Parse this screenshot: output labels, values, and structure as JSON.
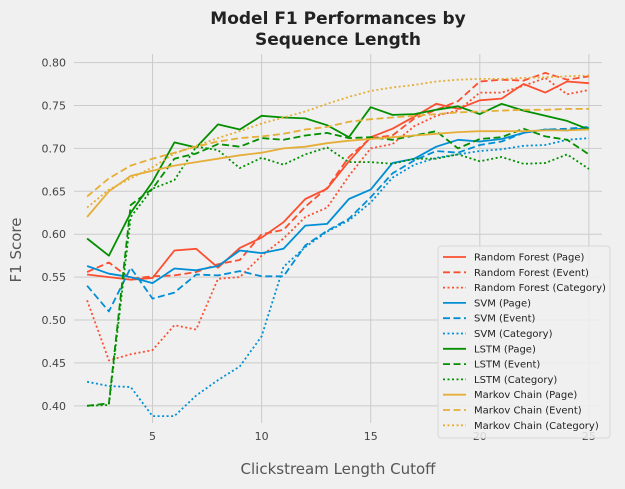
{
  "chart_data": {
    "type": "line",
    "title_line1": "Model F1 Performances by",
    "title_line2": "Sequence Length",
    "xlabel": "Clickstream Length Cutoff",
    "ylabel": "F1 Score",
    "xlim": [
      1.4,
      25.6
    ],
    "ylim": [
      0.38,
      0.81
    ],
    "xticks": [
      5,
      10,
      15,
      20,
      25
    ],
    "yticks": [
      0.4,
      0.45,
      0.5,
      0.55,
      0.6,
      0.65,
      0.7,
      0.75,
      0.8
    ],
    "ytick_labels": [
      "0.40",
      "0.45",
      "0.50",
      "0.55",
      "0.60",
      "0.65",
      "0.70",
      "0.75",
      "0.80"
    ],
    "grid": true,
    "legend_position": "lower-right",
    "x": [
      2,
      3,
      4,
      5,
      6,
      7,
      8,
      9,
      10,
      11,
      12,
      13,
      14,
      15,
      16,
      17,
      18,
      19,
      20,
      21,
      22,
      23,
      24,
      25
    ],
    "series": [
      {
        "name": "Random Forest (Page)",
        "color": "#fc4f30",
        "dash": "solid",
        "values": [
          0.553,
          0.55,
          0.547,
          0.549,
          0.581,
          0.583,
          0.561,
          0.584,
          0.596,
          0.614,
          0.641,
          0.653,
          0.685,
          0.713,
          0.723,
          0.737,
          0.752,
          0.746,
          0.756,
          0.758,
          0.775,
          0.765,
          0.778,
          0.776
        ]
      },
      {
        "name": "Random Forest (Event)",
        "color": "#fc4f30",
        "dash": "dashed",
        "values": [
          0.556,
          0.567,
          0.548,
          0.551,
          0.552,
          0.556,
          0.565,
          0.57,
          0.6,
          0.605,
          0.632,
          0.654,
          0.69,
          0.712,
          0.715,
          0.735,
          0.745,
          0.755,
          0.778,
          0.78,
          0.779,
          0.788,
          0.78,
          0.784
        ]
      },
      {
        "name": "Random Forest (Category)",
        "color": "#fc4f30",
        "dash": "dotted",
        "values": [
          0.523,
          0.453,
          0.46,
          0.465,
          0.494,
          0.489,
          0.548,
          0.55,
          0.575,
          0.595,
          0.62,
          0.631,
          0.668,
          0.7,
          0.705,
          0.726,
          0.738,
          0.744,
          0.765,
          0.765,
          0.773,
          0.782,
          0.763,
          0.768
        ]
      },
      {
        "name": "SVM (Page)",
        "color": "#008fd5",
        "dash": "solid",
        "values": [
          0.563,
          0.554,
          0.55,
          0.543,
          0.56,
          0.558,
          0.563,
          0.581,
          0.578,
          0.583,
          0.61,
          0.612,
          0.641,
          0.652,
          0.683,
          0.688,
          0.702,
          0.71,
          0.708,
          0.711,
          0.718,
          0.722,
          0.721,
          0.724
        ]
      },
      {
        "name": "SVM (Event)",
        "color": "#008fd5",
        "dash": "dashed",
        "values": [
          0.54,
          0.51,
          0.561,
          0.525,
          0.532,
          0.553,
          0.552,
          0.557,
          0.551,
          0.551,
          0.587,
          0.604,
          0.618,
          0.643,
          0.671,
          0.686,
          0.697,
          0.695,
          0.704,
          0.708,
          0.718,
          0.722,
          0.723,
          0.725
        ]
      },
      {
        "name": "SVM (Category)",
        "color": "#008fd5",
        "dash": "dotted",
        "values": [
          0.428,
          0.423,
          0.422,
          0.388,
          0.388,
          0.412,
          0.43,
          0.446,
          0.481,
          0.562,
          0.585,
          0.603,
          0.616,
          0.637,
          0.666,
          0.681,
          0.689,
          0.693,
          0.697,
          0.699,
          0.703,
          0.704,
          0.71,
          0.712
        ]
      },
      {
        "name": "LSTM (Page)",
        "color": "#038f00",
        "dash": "solid",
        "values": [
          0.595,
          0.575,
          0.625,
          0.661,
          0.707,
          0.701,
          0.728,
          0.722,
          0.738,
          0.736,
          0.735,
          0.727,
          0.713,
          0.748,
          0.739,
          0.74,
          0.745,
          0.749,
          0.74,
          0.752,
          0.744,
          0.738,
          0.732,
          0.722
        ]
      },
      {
        "name": "LSTM (Event)",
        "color": "#038f00",
        "dash": "dashed",
        "values": [
          0.4,
          0.403,
          0.634,
          0.653,
          0.688,
          0.694,
          0.705,
          0.702,
          0.712,
          0.71,
          0.715,
          0.718,
          0.712,
          0.713,
          0.71,
          0.715,
          0.72,
          0.7,
          0.711,
          0.713,
          0.723,
          0.714,
          0.71,
          0.693
        ]
      },
      {
        "name": "LSTM (Category)",
        "color": "#038f00",
        "dash": "dotted",
        "values": [
          0.4,
          0.401,
          0.62,
          0.653,
          0.663,
          0.702,
          0.698,
          0.677,
          0.689,
          0.681,
          0.693,
          0.701,
          0.684,
          0.684,
          0.682,
          0.688,
          0.688,
          0.693,
          0.685,
          0.69,
          0.682,
          0.683,
          0.693,
          0.676
        ]
      },
      {
        "name": "Markov Chain (Page)",
        "color": "#e5ae38",
        "dash": "solid",
        "values": [
          0.62,
          0.65,
          0.668,
          0.674,
          0.68,
          0.684,
          0.688,
          0.692,
          0.695,
          0.7,
          0.702,
          0.706,
          0.709,
          0.711,
          0.713,
          0.715,
          0.717,
          0.719,
          0.72,
          0.72,
          0.72,
          0.721,
          0.721,
          0.722
        ]
      },
      {
        "name": "Markov Chain (Event)",
        "color": "#e5ae38",
        "dash": "dashed",
        "values": [
          0.644,
          0.665,
          0.68,
          0.688,
          0.695,
          0.702,
          0.708,
          0.712,
          0.714,
          0.717,
          0.722,
          0.725,
          0.731,
          0.734,
          0.736,
          0.738,
          0.74,
          0.742,
          0.743,
          0.744,
          0.745,
          0.745,
          0.746,
          0.746
        ]
      },
      {
        "name": "Markov Chain (Category)",
        "color": "#e5ae38",
        "dash": "dotted",
        "values": [
          0.631,
          0.652,
          0.665,
          0.678,
          0.694,
          0.703,
          0.712,
          0.72,
          0.729,
          0.736,
          0.743,
          0.752,
          0.76,
          0.767,
          0.771,
          0.774,
          0.778,
          0.78,
          0.781,
          0.781,
          0.782,
          0.783,
          0.784,
          0.785
        ]
      }
    ]
  }
}
